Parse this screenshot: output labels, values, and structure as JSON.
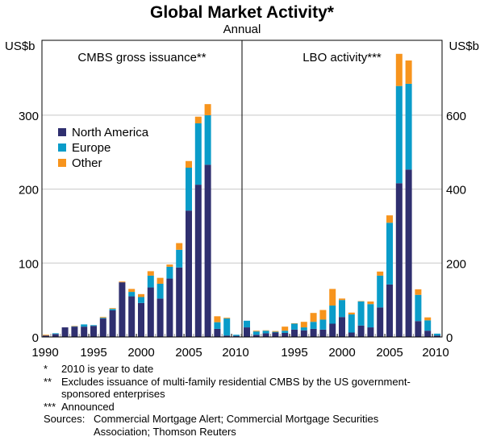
{
  "title": "Global Market Activity*",
  "subtitle": "Annual",
  "colors": {
    "North America": "#2f2f6f",
    "Europe": "#0a9cc9",
    "Other": "#f7941d",
    "grid": "#c8c8c8"
  },
  "chart_data": [
    {
      "type": "bar",
      "stacked": true,
      "panel_title": "CMBS gross issuance**",
      "ylabel": "US$b",
      "ylim": [
        0,
        350
      ],
      "yticks": [
        "0",
        "100",
        "200",
        "300"
      ],
      "xtick_labels": [
        "1990",
        "1995",
        "2000",
        "2005",
        "2010"
      ],
      "grid": true,
      "legend": {
        "placement": "top-left",
        "entries": [
          "North America",
          "Europe",
          "Other"
        ]
      },
      "categories": [
        1990,
        1991,
        1992,
        1993,
        1994,
        1995,
        1996,
        1997,
        1998,
        1999,
        2000,
        2001,
        2002,
        2003,
        2004,
        2005,
        2006,
        2007,
        2008,
        2009,
        2010
      ],
      "series": [
        {
          "name": "North America",
          "values": [
            2,
            4,
            13,
            14,
            14,
            15,
            25,
            36,
            74,
            55,
            46,
            67,
            52,
            79,
            94,
            171,
            206,
            233,
            11,
            2,
            1.5
          ]
        },
        {
          "name": "Europe",
          "values": [
            0,
            1,
            0,
            0.5,
            3,
            1,
            1,
            2,
            0,
            6,
            8,
            16,
            20,
            16,
            24,
            58,
            83,
            67,
            9,
            23,
            1.5
          ]
        },
        {
          "name": "Other",
          "values": [
            1,
            0,
            0,
            0.5,
            0,
            0,
            1,
            1,
            1,
            4,
            4,
            6,
            8,
            3,
            9,
            9,
            9,
            15,
            8,
            1,
            0
          ]
        }
      ]
    },
    {
      "type": "bar",
      "stacked": true,
      "panel_title": "LBO activity***",
      "ylabel": "US$b",
      "ylim": [
        0,
        700
      ],
      "yticks": [
        "0",
        "200",
        "400",
        "600"
      ],
      "xtick_labels": [
        "1995",
        "2000",
        "2005",
        "2010"
      ],
      "grid": true,
      "categories": [
        1990,
        1991,
        1992,
        1993,
        1994,
        1995,
        1996,
        1997,
        1998,
        1999,
        2000,
        2001,
        2002,
        2003,
        2004,
        2005,
        2006,
        2007,
        2008,
        2009,
        2010
      ],
      "series": [
        {
          "name": "North America",
          "values": [
            26,
            6,
            10,
            12,
            11,
            20,
            18,
            22,
            20,
            36,
            54,
            12,
            31,
            26,
            80,
            142,
            416,
            453,
            43,
            17,
            4
          ]
        },
        {
          "name": "Europe",
          "values": [
            18,
            9,
            7,
            2,
            6,
            16,
            8,
            19,
            27,
            49,
            46,
            49,
            65,
            63,
            86,
            167,
            263,
            232,
            71,
            28,
            5
          ]
        },
        {
          "name": "Other",
          "values": [
            0,
            2,
            1,
            2,
            11,
            1,
            15,
            24,
            26,
            45,
            4,
            5,
            1,
            7,
            11,
            20,
            87,
            63,
            15,
            8,
            0
          ]
        }
      ]
    }
  ],
  "notes": [
    {
      "mark": "*",
      "text": "2010 is year to date"
    },
    {
      "mark": "**",
      "text": "Excludes issuance of multi-family residential CMBS by the US government-sponsored enterprises"
    },
    {
      "mark": "***",
      "text": "Announced"
    }
  ],
  "sources_label": "Sources:",
  "sources": "Commercial Mortgage Alert; Commercial Mortgage Securities Association; Thomson Reuters"
}
